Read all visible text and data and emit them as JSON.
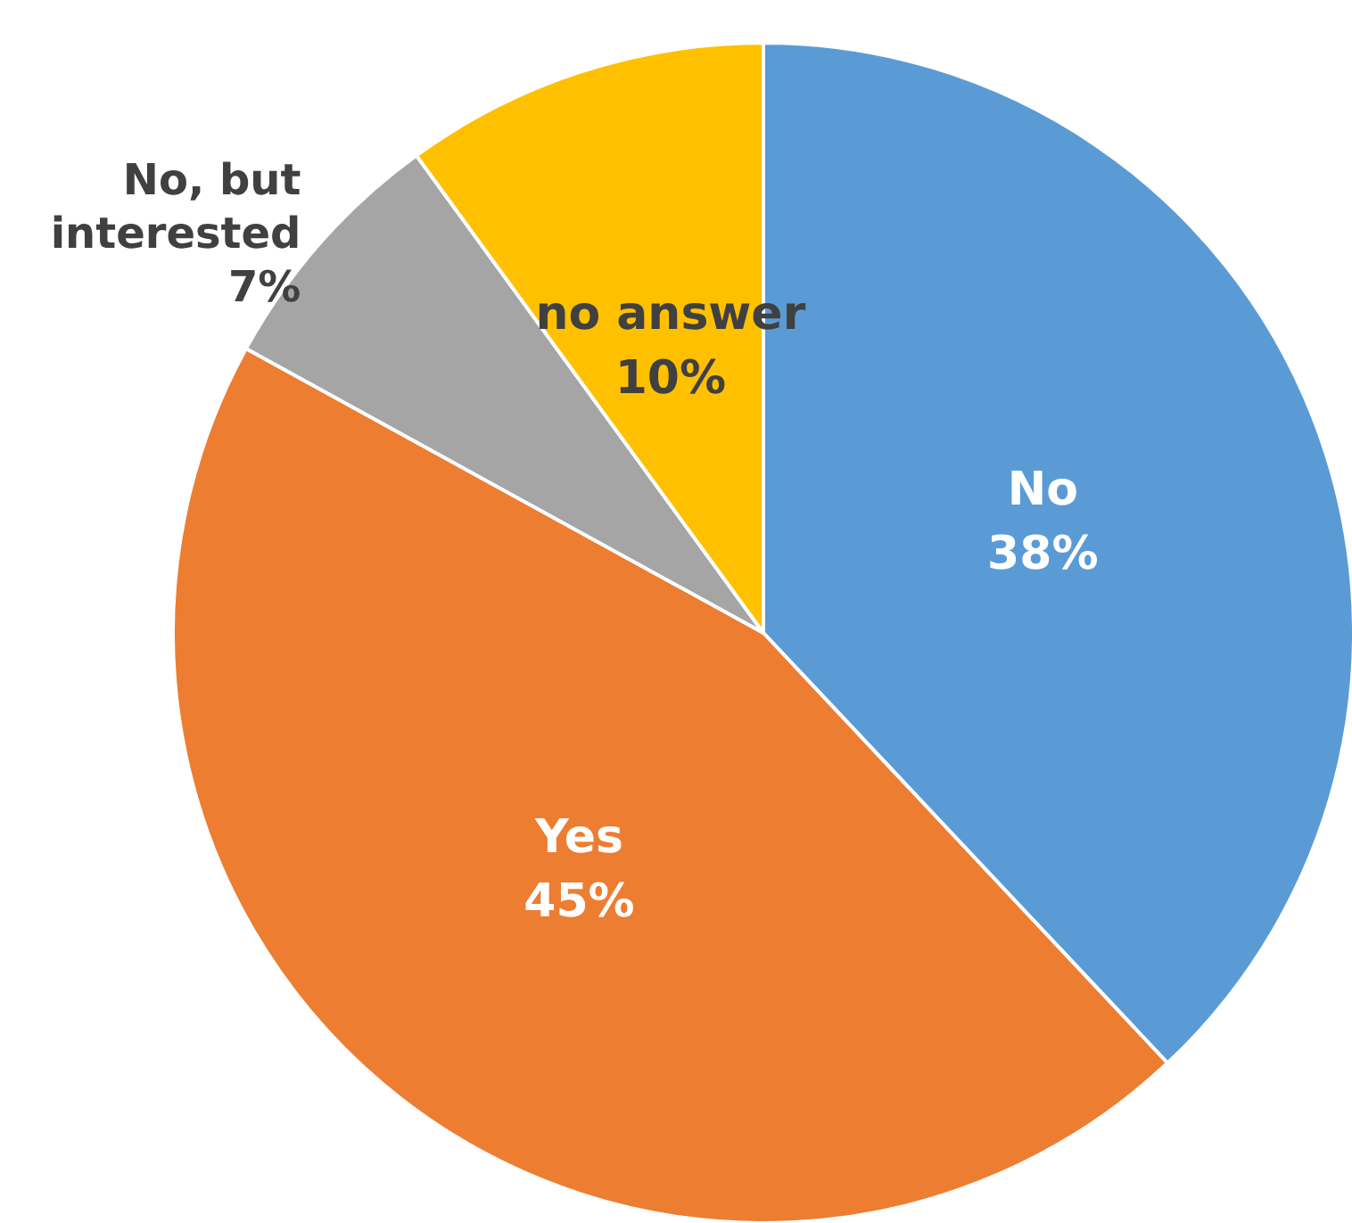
{
  "chart_data": {
    "type": "pie",
    "categories": [
      "No",
      "Yes",
      "No, but\ninterested",
      "no answer"
    ],
    "values": [
      38,
      45,
      7,
      10
    ],
    "value_labels": [
      "38%",
      "45%",
      "7%",
      "10%"
    ],
    "colors": [
      "#5b9bd5",
      "#ed7d31",
      "#a5a5a5",
      "#ffc000"
    ],
    "legend": false
  }
}
